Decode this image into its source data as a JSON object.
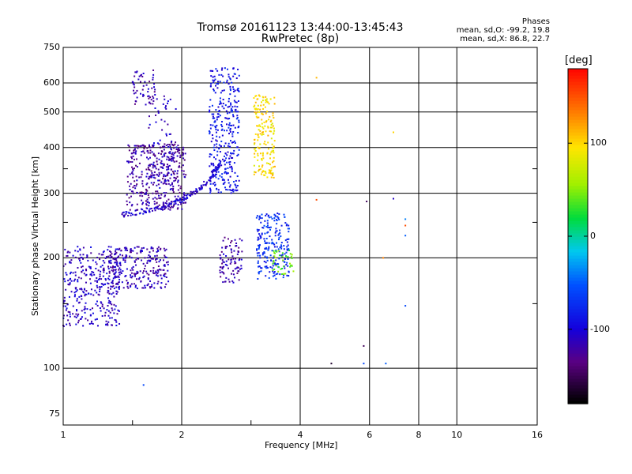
{
  "header": {
    "title_line1": "Tromsø 20161123 13:44:00-13:45:43",
    "title_line2": "RwPretec (8p)"
  },
  "stats": {
    "heading": "Phases",
    "line1": "mean, sd,O: -99.2, 19.8",
    "line2": "mean, sd,X:  86.8, 22.7"
  },
  "colorbar": {
    "label": "[deg]",
    "ticks": [
      "100",
      "0",
      "-100"
    ],
    "tick_values": [
      100,
      0,
      -100
    ],
    "range": [
      -180,
      180
    ]
  },
  "chart_data": {
    "type": "scatter",
    "title": "Tromsø 20161123 13:44:00-13:45:43",
    "subtitle": "RwPretec (8p)",
    "xlabel": "Frequency [MHz]",
    "ylabel": "Stationary phase Virtual Height [km]",
    "x_scale": "log",
    "y_scale": "log",
    "xlim": [
      1,
      16
    ],
    "ylim": [
      70,
      750
    ],
    "x_ticks": [
      1,
      2,
      4,
      6,
      8,
      10,
      16
    ],
    "x_tick_labels": [
      "1",
      "2",
      "4",
      "6",
      "8",
      "10",
      "16"
    ],
    "y_ticks": [
      75,
      100,
      200,
      300,
      400,
      500,
      600,
      750
    ],
    "y_tick_labels": [
      "75",
      "100",
      "200",
      "300",
      "400",
      "500",
      "600",
      "750"
    ],
    "grid": true,
    "color_by": "phase [deg]",
    "clusters": [
      {
        "x_range": [
          1.0,
          1.4
        ],
        "y_range": [
          130,
          215
        ],
        "phase": -110,
        "count": 340
      },
      {
        "x_range": [
          1.3,
          1.85
        ],
        "y_range": [
          165,
          215
        ],
        "phase": -115,
        "count": 260
      },
      {
        "x_range": [
          1.45,
          2.05
        ],
        "y_range": [
          270,
          410
        ],
        "phase": -125,
        "count": 380
      },
      {
        "x_range": [
          1.65,
          1.95
        ],
        "y_range": [
          300,
          560
        ],
        "phase": -110,
        "count": 90
      },
      {
        "x_range": [
          1.5,
          1.72
        ],
        "y_range": [
          520,
          650
        ],
        "phase": -120,
        "count": 55
      },
      {
        "x_range": [
          2.35,
          2.8
        ],
        "y_range": [
          300,
          660
        ],
        "phase": -90,
        "count": 330
      },
      {
        "x_range": [
          3.05,
          3.45
        ],
        "y_range": [
          330,
          560
        ],
        "phase": 95,
        "count": 180
      },
      {
        "x_range": [
          2.5,
          2.85
        ],
        "y_range": [
          170,
          230
        ],
        "phase": -120,
        "count": 90
      },
      {
        "x_range": [
          3.1,
          3.75
        ],
        "y_range": [
          175,
          265
        ],
        "phase": -75,
        "count": 220
      },
      {
        "x_range": [
          3.4,
          3.85
        ],
        "y_range": [
          180,
          210
        ],
        "phase": 40,
        "count": 40
      }
    ],
    "traces": [
      {
        "name": "",
        "points": [
          [
            1.4,
            262
          ],
          [
            1.6,
            268
          ],
          [
            1.8,
            277
          ],
          [
            2.0,
            288
          ],
          [
            2.2,
            305
          ],
          [
            2.4,
            335
          ],
          [
            2.5,
            360
          ]
        ],
        "phase": -105
      }
    ],
    "isolated_points": [
      {
        "x": 1.6,
        "y": 90,
        "phase": -60
      },
      {
        "x": 4.8,
        "y": 103,
        "phase": -165
      },
      {
        "x": 5.8,
        "y": 103,
        "phase": -60
      },
      {
        "x": 5.8,
        "y": 115,
        "phase": -150
      },
      {
        "x": 6.6,
        "y": 103,
        "phase": -50
      },
      {
        "x": 7.4,
        "y": 148,
        "phase": -60
      },
      {
        "x": 7.4,
        "y": 230,
        "phase": -50
      },
      {
        "x": 7.4,
        "y": 245,
        "phase": 150
      },
      {
        "x": 7.4,
        "y": 255,
        "phase": -40
      },
      {
        "x": 6.9,
        "y": 440,
        "phase": 100
      },
      {
        "x": 4.4,
        "y": 620,
        "phase": 110
      },
      {
        "x": 4.4,
        "y": 288,
        "phase": 150
      },
      {
        "x": 5.9,
        "y": 285,
        "phase": -150
      },
      {
        "x": 6.9,
        "y": 290,
        "phase": -110
      },
      {
        "x": 6.5,
        "y": 200,
        "phase": 130
      }
    ]
  }
}
